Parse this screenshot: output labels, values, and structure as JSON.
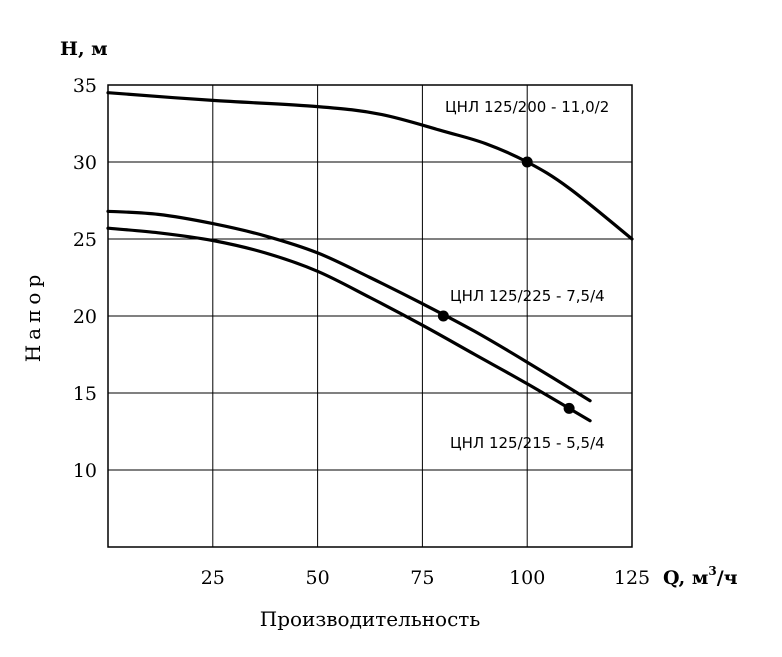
{
  "chart_data": {
    "type": "line",
    "ylabel": "Напор",
    "xlabel": "Производительность",
    "y_unit": "H, м",
    "x_unit_prefix": "Q, м",
    "x_unit_sup": "3",
    "x_unit_suffix": "/ч",
    "xlim": [
      0,
      125
    ],
    "ylim": [
      0,
      35
    ],
    "x_ticks": [
      25,
      50,
      75,
      100,
      125
    ],
    "x_tick_labels": [
      "25",
      "50",
      "75",
      "100",
      "125"
    ],
    "y_ticks": [
      10,
      15,
      20,
      25,
      30,
      35
    ],
    "y_tick_labels": [
      "10",
      "15",
      "20",
      "25",
      "30",
      "35"
    ],
    "grid": true,
    "series": [
      {
        "name": "ЦНЛ 125/200 - 11,0/2",
        "x": [
          0,
          25,
          50,
          65,
          80,
          90,
          100,
          110,
          125
        ],
        "y": [
          34.5,
          34.0,
          33.6,
          33.1,
          32.0,
          31.2,
          30.0,
          28.3,
          25.0
        ],
        "marker": {
          "x": 100,
          "y": 30
        }
      },
      {
        "name": "ЦНЛ 125/225 - 7,5/4",
        "x": [
          0,
          12,
          25,
          37.5,
          50,
          62.5,
          75,
          87.5,
          100,
          115
        ],
        "y": [
          26.8,
          26.6,
          26.0,
          25.2,
          24.1,
          22.5,
          20.8,
          19.0,
          17.0,
          14.5
        ],
        "marker": {
          "x": 80,
          "y": 20
        }
      },
      {
        "name": "ЦНЛ 125/215 - 5,5/4",
        "x": [
          0,
          12,
          25,
          37.5,
          50,
          62.5,
          75,
          87.5,
          100,
          115
        ],
        "y": [
          25.7,
          25.4,
          24.9,
          24.1,
          22.9,
          21.2,
          19.4,
          17.5,
          15.6,
          13.2
        ],
        "marker": {
          "x": 110,
          "y": 14
        }
      }
    ]
  }
}
